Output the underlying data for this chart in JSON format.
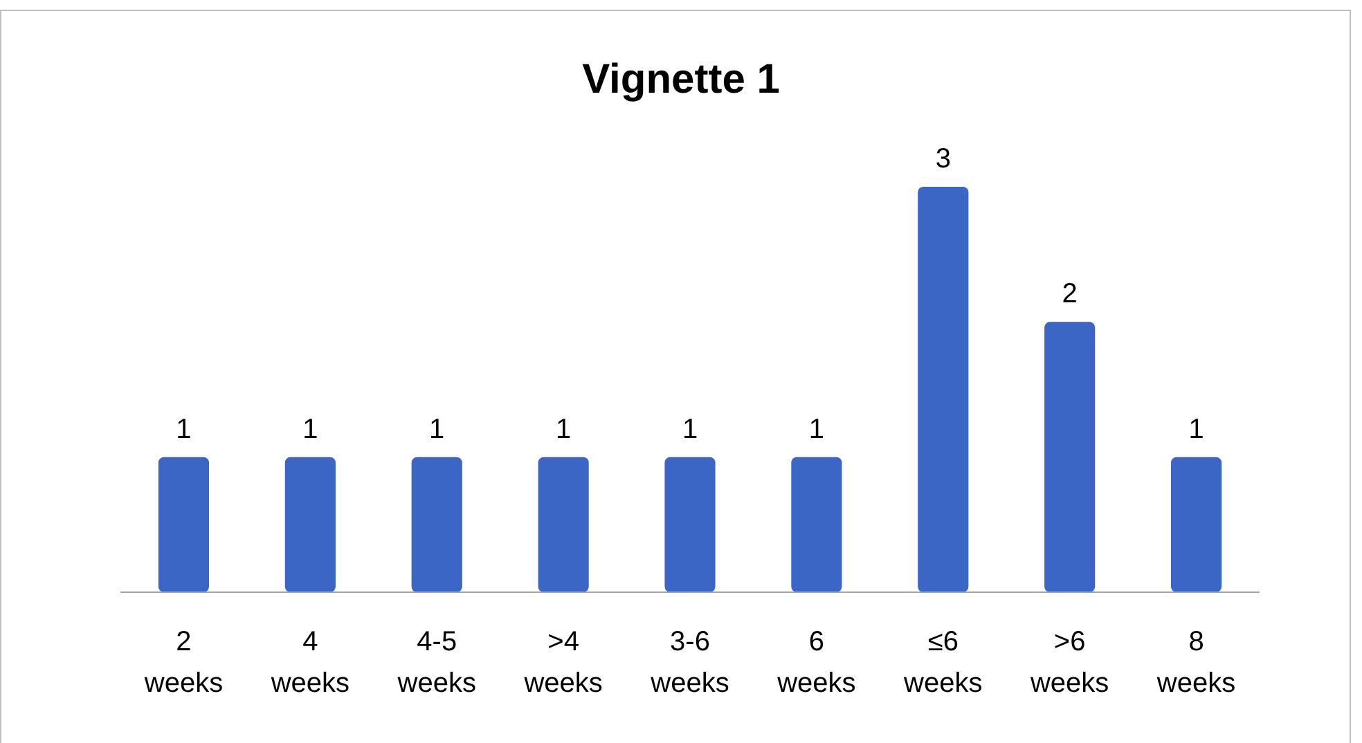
{
  "chart_data": {
    "type": "bar",
    "title": "Vignette 1",
    "categories": [
      "2 weeks",
      "4 weeks",
      "4-5 weeks",
      ">4 weeks",
      "3-6 weeks",
      "6 weeks",
      "≤6 weeks",
      ">6 weeks",
      "8 weeks"
    ],
    "values": [
      1,
      1,
      1,
      1,
      1,
      1,
      3,
      2,
      1
    ],
    "color": "#3b66c6",
    "data_labels": true
  }
}
